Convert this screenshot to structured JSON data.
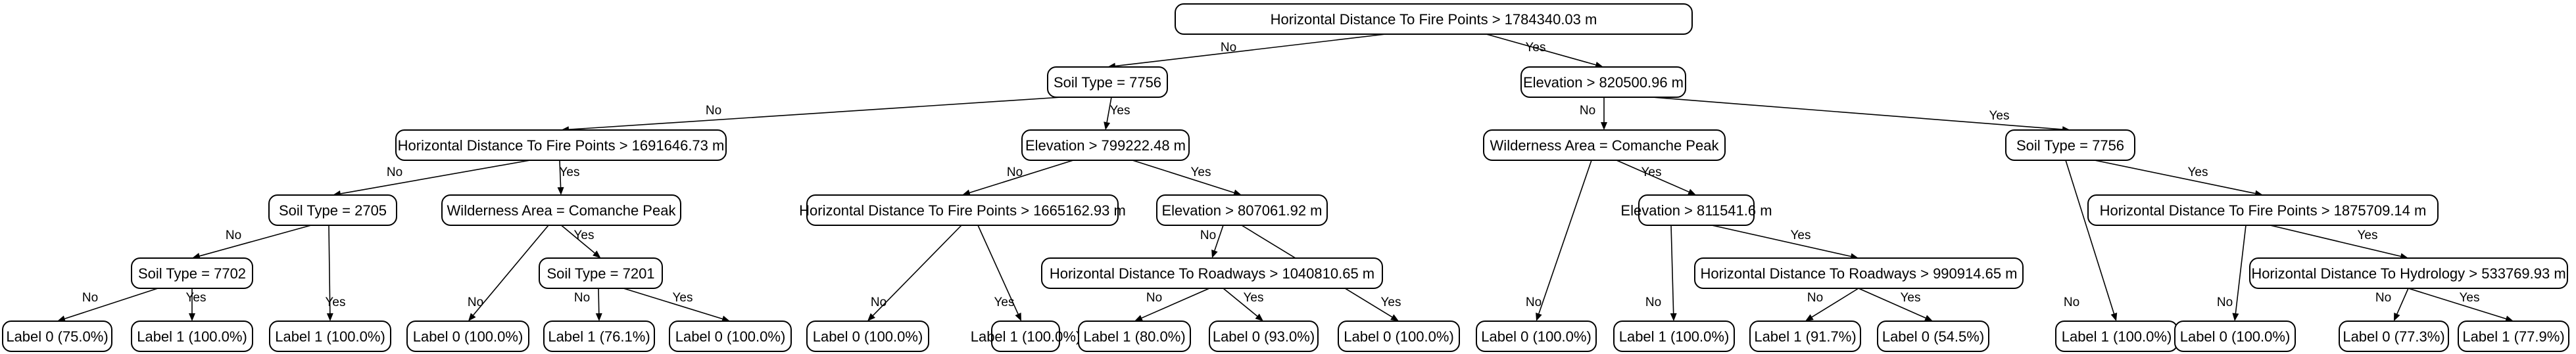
{
  "tree": {
    "nodes": [
      {
        "id": "n0",
        "label": "Horizontal Distance To Fire Points > 1784340.03 m"
      },
      {
        "id": "n1",
        "label": "Soil Type = 7756"
      },
      {
        "id": "n2",
        "label": "Elevation > 820500.96 m"
      },
      {
        "id": "n3",
        "label": "Horizontal Distance To Fire Points > 1691646.73 m"
      },
      {
        "id": "n4",
        "label": "Elevation > 799222.48 m"
      },
      {
        "id": "n5",
        "label": "Wilderness Area = Comanche Peak"
      },
      {
        "id": "n6",
        "label": "Soil Type = 7756"
      },
      {
        "id": "n7",
        "label": "Soil Type = 2705"
      },
      {
        "id": "n8",
        "label": "Wilderness Area = Comanche Peak"
      },
      {
        "id": "n9",
        "label": "Horizontal Distance To Fire Points > 1665162.93 m"
      },
      {
        "id": "n10",
        "label": "Elevation > 807061.92 m"
      },
      {
        "id": "n11",
        "label": "Elevation > 811541.6 m"
      },
      {
        "id": "n12",
        "label": "Horizontal Distance To Fire Points > 1875709.14 m"
      },
      {
        "id": "n13",
        "label": "Soil Type = 7702"
      },
      {
        "id": "n14",
        "label": "Soil Type = 7201"
      },
      {
        "id": "n15",
        "label": "Horizontal Distance To Roadways > 1040810.65 m"
      },
      {
        "id": "n16",
        "label": "Horizontal Distance To Roadways > 990914.65 m"
      },
      {
        "id": "n17",
        "label": "Horizontal Distance To Hydrology > 533769.93 m"
      },
      {
        "id": "l0",
        "label": "Label 0 (75.0%)"
      },
      {
        "id": "l1",
        "label": "Label 1 (100.0%)"
      },
      {
        "id": "l2",
        "label": "Label 1 (100.0%)"
      },
      {
        "id": "l3",
        "label": "Label 0 (100.0%)"
      },
      {
        "id": "l4",
        "label": "Label 1 (76.1%)"
      },
      {
        "id": "l5",
        "label": "Label 0 (100.0%)"
      },
      {
        "id": "l6",
        "label": "Label 0 (100.0%)"
      },
      {
        "id": "l7",
        "label": "Label 1 (100.0%)"
      },
      {
        "id": "l8",
        "label": "Label 1 (80.0%)"
      },
      {
        "id": "l9",
        "label": "Label 0 (93.0%)"
      },
      {
        "id": "l10",
        "label": "Label 0 (100.0%)"
      },
      {
        "id": "l11",
        "label": "Label 0 (100.0%)"
      },
      {
        "id": "l12",
        "label": "Label 1 (100.0%)"
      },
      {
        "id": "l13",
        "label": "Label 1 (91.7%)"
      },
      {
        "id": "l14",
        "label": "Label 0 (54.5%)"
      },
      {
        "id": "l15",
        "label": "Label 1 (100.0%)"
      },
      {
        "id": "l16",
        "label": "Label 0 (100.0%)"
      },
      {
        "id": "l17",
        "label": "Label 0 (77.3%)"
      },
      {
        "id": "l18",
        "label": "Label 1 (77.9%)"
      }
    ],
    "edges": [
      {
        "from": "n0",
        "to": "n1",
        "label": "No"
      },
      {
        "from": "n0",
        "to": "n2",
        "label": "Yes"
      },
      {
        "from": "n1",
        "to": "n3",
        "label": "No"
      },
      {
        "from": "n1",
        "to": "n4",
        "label": "Yes"
      },
      {
        "from": "n2",
        "to": "n5",
        "label": "No"
      },
      {
        "from": "n2",
        "to": "n6",
        "label": "Yes"
      },
      {
        "from": "n3",
        "to": "n7",
        "label": "No"
      },
      {
        "from": "n3",
        "to": "n8",
        "label": "Yes"
      },
      {
        "from": "n4",
        "to": "n9",
        "label": "No"
      },
      {
        "from": "n4",
        "to": "n10",
        "label": "Yes"
      },
      {
        "from": "n5",
        "to": "l11",
        "label": "No"
      },
      {
        "from": "n5",
        "to": "n11",
        "label": "Yes"
      },
      {
        "from": "n6",
        "to": "l15",
        "label": "No"
      },
      {
        "from": "n6",
        "to": "n12",
        "label": "Yes"
      },
      {
        "from": "n7",
        "to": "n13",
        "label": "No"
      },
      {
        "from": "n7",
        "to": "l2",
        "label": "Yes"
      },
      {
        "from": "n8",
        "to": "l3",
        "label": "No"
      },
      {
        "from": "n8",
        "to": "n14",
        "label": "Yes"
      },
      {
        "from": "n9",
        "to": "l6",
        "label": "No"
      },
      {
        "from": "n9",
        "to": "l7",
        "label": "Yes"
      },
      {
        "from": "n10",
        "to": "n15",
        "label": "No"
      },
      {
        "from": "n10",
        "to": "l10",
        "label": "Yes"
      },
      {
        "from": "n11",
        "to": "l12",
        "label": "No"
      },
      {
        "from": "n11",
        "to": "n16",
        "label": "Yes"
      },
      {
        "from": "n12",
        "to": "l16",
        "label": "No"
      },
      {
        "from": "n12",
        "to": "n17",
        "label": "Yes"
      },
      {
        "from": "n13",
        "to": "l0",
        "label": "No"
      },
      {
        "from": "n13",
        "to": "l1",
        "label": "Yes"
      },
      {
        "from": "n14",
        "to": "l4",
        "label": "No"
      },
      {
        "from": "n14",
        "to": "l5",
        "label": "Yes"
      },
      {
        "from": "n15",
        "to": "l8",
        "label": "No"
      },
      {
        "from": "n15",
        "to": "l9",
        "label": "Yes"
      },
      {
        "from": "n16",
        "to": "l13",
        "label": "No"
      },
      {
        "from": "n16",
        "to": "l14",
        "label": "Yes"
      },
      {
        "from": "n17",
        "to": "l17",
        "label": "No"
      },
      {
        "from": "n17",
        "to": "l18",
        "label": "Yes"
      }
    ]
  }
}
